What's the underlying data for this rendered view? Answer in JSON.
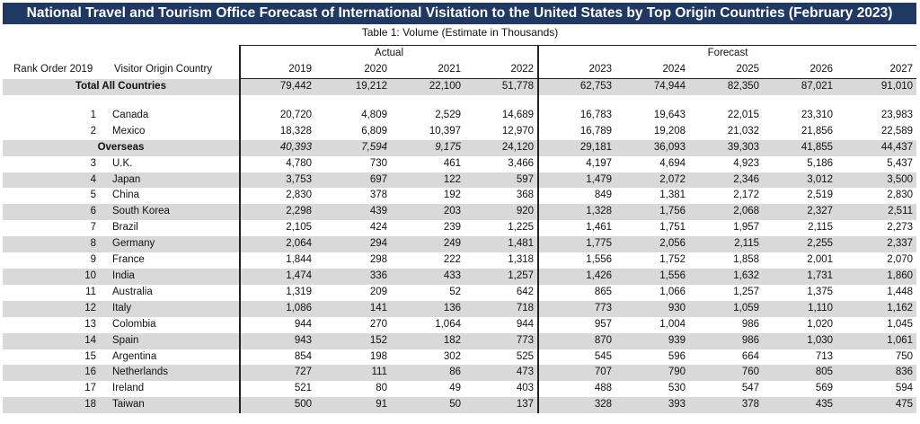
{
  "title": "National Travel and Tourism Office Forecast of International Visitation to the United States by Top Origin Countries (February 2023)",
  "subtitle": "Table 1: Volume (Estimate in Thousands)",
  "header": {
    "rank_label": "Rank Order 2019",
    "country_label": "Visitor Origin Country",
    "actual_label": "Actual",
    "forecast_label": "Forecast",
    "years": [
      "2019",
      "2020",
      "2021",
      "2022",
      "2023",
      "2024",
      "2025",
      "2026",
      "2027"
    ]
  },
  "total": {
    "label": "Total All Countries",
    "values": [
      "79,442",
      "19,212",
      "22,100",
      "51,778",
      "62,753",
      "74,944",
      "82,350",
      "87,021",
      "91,010"
    ]
  },
  "neighbors": [
    {
      "rank": "1",
      "country": "Canada",
      "values": [
        "20,720",
        "4,809",
        "2,529",
        "14,689",
        "16,783",
        "19,643",
        "22,015",
        "23,310",
        "23,983"
      ]
    },
    {
      "rank": "2",
      "country": "Mexico",
      "values": [
        "18,328",
        "6,809",
        "10,397",
        "12,970",
        "16,789",
        "19,208",
        "21,032",
        "21,856",
        "22,589"
      ]
    }
  ],
  "overseas": {
    "label": "Overseas",
    "values": [
      "40,393",
      "7,594",
      "9,175",
      "24,120",
      "29,181",
      "36,093",
      "39,303",
      "41,855",
      "44,437"
    ]
  },
  "countries": [
    {
      "rank": "3",
      "country": "U.K.",
      "values": [
        "4,780",
        "730",
        "461",
        "3,466",
        "4,197",
        "4,694",
        "4,923",
        "5,186",
        "5,437"
      ]
    },
    {
      "rank": "4",
      "country": "Japan",
      "values": [
        "3,753",
        "697",
        "122",
        "597",
        "1,479",
        "2,072",
        "2,346",
        "3,012",
        "3,500"
      ]
    },
    {
      "rank": "5",
      "country": "China",
      "values": [
        "2,830",
        "378",
        "192",
        "368",
        "849",
        "1,381",
        "2,172",
        "2,519",
        "2,830"
      ]
    },
    {
      "rank": "6",
      "country": "South Korea",
      "values": [
        "2,298",
        "439",
        "203",
        "920",
        "1,328",
        "1,756",
        "2,068",
        "2,327",
        "2,511"
      ]
    },
    {
      "rank": "7",
      "country": "Brazil",
      "values": [
        "2,105",
        "424",
        "239",
        "1,225",
        "1,461",
        "1,751",
        "1,957",
        "2,115",
        "2,273"
      ]
    },
    {
      "rank": "8",
      "country": "Germany",
      "values": [
        "2,064",
        "294",
        "249",
        "1,481",
        "1,775",
        "2,056",
        "2,115",
        "2,255",
        "2,337"
      ]
    },
    {
      "rank": "9",
      "country": "France",
      "values": [
        "1,844",
        "298",
        "222",
        "1,318",
        "1,556",
        "1,752",
        "1,858",
        "2,001",
        "2,070"
      ]
    },
    {
      "rank": "10",
      "country": "India",
      "values": [
        "1,474",
        "336",
        "433",
        "1,257",
        "1,426",
        "1,556",
        "1,632",
        "1,731",
        "1,860"
      ]
    },
    {
      "rank": "11",
      "country": "Australia",
      "values": [
        "1,319",
        "209",
        "52",
        "642",
        "865",
        "1,066",
        "1,257",
        "1,375",
        "1,448"
      ]
    },
    {
      "rank": "12",
      "country": "Italy",
      "values": [
        "1,086",
        "141",
        "136",
        "718",
        "773",
        "930",
        "1,059",
        "1,110",
        "1,162"
      ]
    },
    {
      "rank": "13",
      "country": "Colombia",
      "values": [
        "944",
        "270",
        "1,064",
        "944",
        "957",
        "1,004",
        "986",
        "1,020",
        "1,045"
      ]
    },
    {
      "rank": "14",
      "country": "Spain",
      "values": [
        "943",
        "152",
        "182",
        "773",
        "870",
        "939",
        "986",
        "1,030",
        "1,061"
      ]
    },
    {
      "rank": "15",
      "country": "Argentina",
      "values": [
        "854",
        "198",
        "302",
        "525",
        "545",
        "596",
        "664",
        "713",
        "750"
      ]
    },
    {
      "rank": "16",
      "country": "Netherlands",
      "values": [
        "727",
        "111",
        "86",
        "473",
        "707",
        "790",
        "760",
        "805",
        "836"
      ]
    },
    {
      "rank": "17",
      "country": "Ireland",
      "values": [
        "521",
        "80",
        "49",
        "403",
        "488",
        "530",
        "547",
        "569",
        "594"
      ]
    },
    {
      "rank": "18",
      "country": "Taiwan",
      "values": [
        "500",
        "91",
        "50",
        "137",
        "328",
        "393",
        "378",
        "435",
        "475"
      ]
    }
  ]
}
